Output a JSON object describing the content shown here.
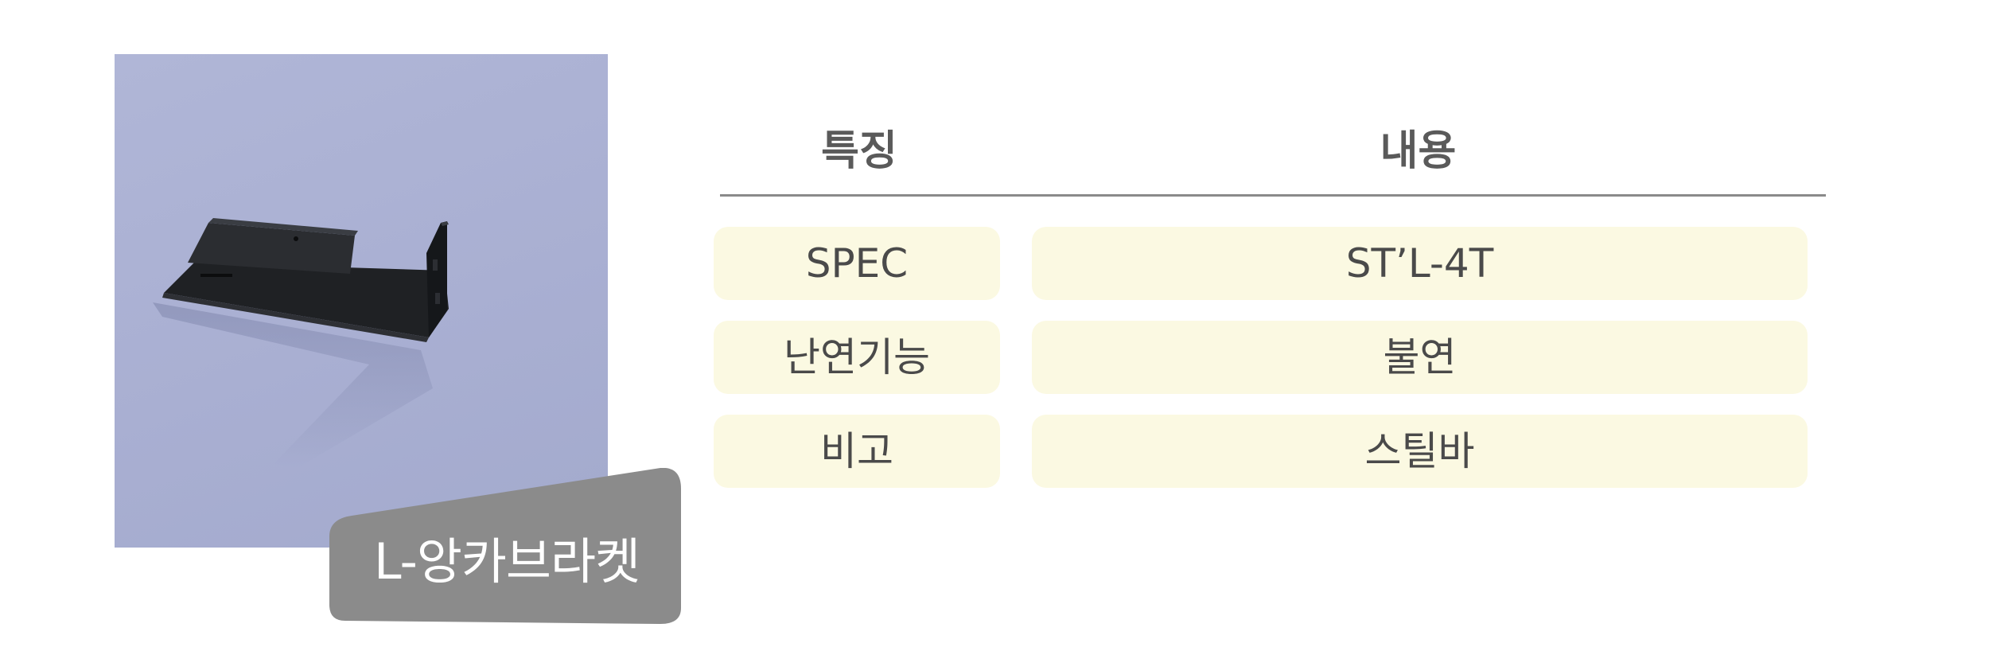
{
  "product": {
    "name": "L-앙카브라켓",
    "image_alt": "L-앙카브라켓 product photo",
    "photo_background": "#acb2d4",
    "tag_color": "#8b8b8b"
  },
  "spec_table": {
    "headers": {
      "feature": "특징",
      "content": "내용"
    },
    "rows": [
      {
        "feature": "SPEC",
        "content": "ST’L-4T"
      },
      {
        "feature": "난연기능",
        "content": "불연"
      },
      {
        "feature": "비고",
        "content": "스틸바"
      }
    ],
    "cell_color": "#fbf9e2"
  }
}
